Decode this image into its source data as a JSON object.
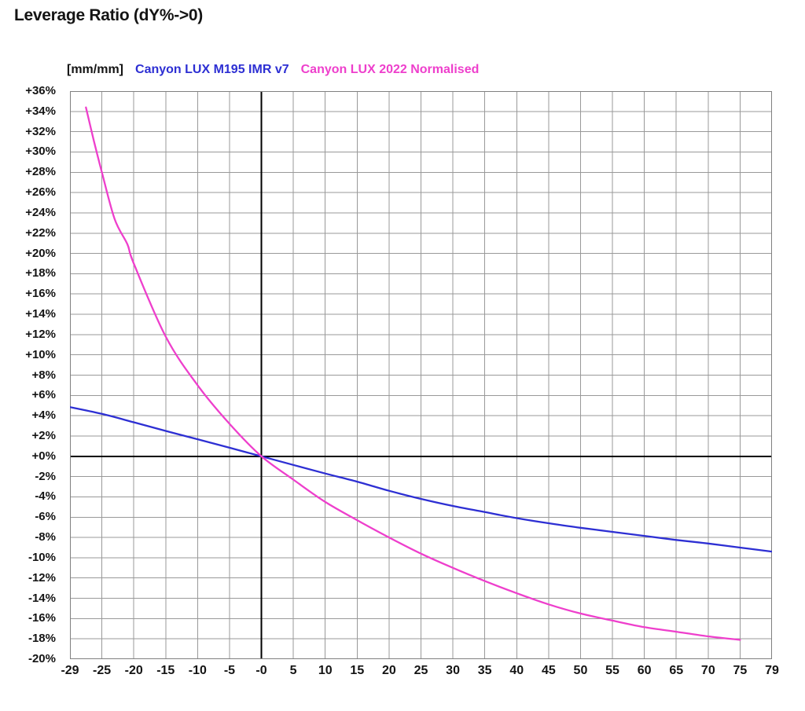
{
  "title": "Leverage Ratio (dY%->0)",
  "legend": {
    "unit_label": "[mm/mm]",
    "position": "top"
  },
  "colors": {
    "series_blue": "#2D2FD3",
    "series_magenta": "#EE3FCC",
    "grid": "#999999",
    "plot_border": "#808080",
    "zero_axis": "#000000",
    "text": "#141414"
  },
  "chart_data": {
    "type": "line",
    "title": "Leverage Ratio (dY%->0)",
    "xlabel": "",
    "ylabel": "[mm/mm]",
    "grid": true,
    "legend_position": "top",
    "ylim": [
      -20,
      36
    ],
    "y_tick_step_percent": 2,
    "y_ticks": [
      "+36%",
      "+34%",
      "+32%",
      "+30%",
      "+28%",
      "+26%",
      "+24%",
      "+22%",
      "+20%",
      "+18%",
      "+16%",
      "+14%",
      "+12%",
      "+10%",
      "+8%",
      "+6%",
      "+4%",
      "+2%",
      "+0%",
      "-2%",
      "-4%",
      "-6%",
      "-8%",
      "-10%",
      "-12%",
      "-14%",
      "-16%",
      "-18%",
      "-20%"
    ],
    "x_ticks": [
      "-29",
      "-25",
      "-20",
      "-15",
      "-10",
      "-5",
      "-0",
      "5",
      "10",
      "15",
      "20",
      "25",
      "30",
      "35",
      "40",
      "45",
      "50",
      "55",
      "60",
      "65",
      "70",
      "75",
      "79"
    ],
    "x_tick_values": [
      -29,
      -25,
      -20,
      -15,
      -10,
      -5,
      0,
      5,
      10,
      15,
      20,
      25,
      30,
      35,
      40,
      45,
      50,
      55,
      60,
      65,
      70,
      75,
      79
    ],
    "zero_axes": {
      "x_zero": 0,
      "y_zero": 0
    },
    "series": [
      {
        "name": "Canyon LUX M195 IMR v7",
        "color": "#2D2FD3",
        "points": [
          [
            -29,
            4.85
          ],
          [
            -25,
            4.18
          ],
          [
            -20,
            3.35
          ],
          [
            -15,
            2.5
          ],
          [
            -10,
            1.68
          ],
          [
            -5,
            0.84
          ],
          [
            0,
            0
          ],
          [
            5,
            -0.85
          ],
          [
            10,
            -1.7
          ],
          [
            15,
            -2.5
          ],
          [
            20,
            -3.4
          ],
          [
            25,
            -4.2
          ],
          [
            30,
            -4.9
          ],
          [
            35,
            -5.5
          ],
          [
            40,
            -6.1
          ],
          [
            45,
            -6.6
          ],
          [
            50,
            -7.05
          ],
          [
            55,
            -7.45
          ],
          [
            60,
            -7.85
          ],
          [
            65,
            -8.25
          ],
          [
            70,
            -8.6
          ],
          [
            75,
            -9.0
          ],
          [
            79,
            -9.4
          ]
        ]
      },
      {
        "name": "Canyon LUX 2022 Normalised",
        "color": "#EE3FCC",
        "points": [
          [
            -27,
            34.4
          ],
          [
            -26,
            31.1
          ],
          [
            -25,
            28.0
          ],
          [
            -23,
            23.4
          ],
          [
            -21,
            20.9
          ],
          [
            -20,
            19.0
          ],
          [
            -15,
            11.8
          ],
          [
            -10,
            7.0
          ],
          [
            -5,
            3.2
          ],
          [
            0,
            0
          ],
          [
            5,
            -2.3
          ],
          [
            10,
            -4.5
          ],
          [
            15,
            -6.3
          ],
          [
            20,
            -8.0
          ],
          [
            25,
            -9.6
          ],
          [
            30,
            -11.0
          ],
          [
            35,
            -12.3
          ],
          [
            40,
            -13.5
          ],
          [
            45,
            -14.6
          ],
          [
            50,
            -15.5
          ],
          [
            55,
            -16.2
          ],
          [
            60,
            -16.85
          ],
          [
            65,
            -17.3
          ],
          [
            70,
            -17.75
          ],
          [
            75,
            -18.1
          ]
        ]
      }
    ]
  }
}
